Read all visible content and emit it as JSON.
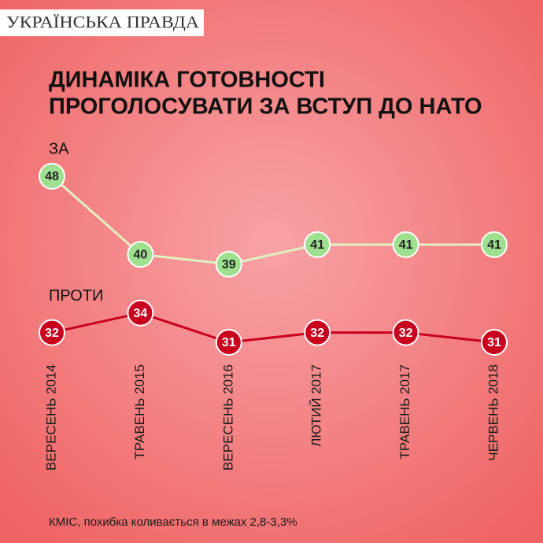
{
  "logo": "УКРАЇНСЬКА ПРАВДА",
  "chart_data": {
    "type": "line",
    "title": [
      "ДИНАМІКА ГОТОВНОСТІ",
      "ПРОГОЛОСУВАТИ ЗА ВСТУП ДО НАТО"
    ],
    "categories": [
      "ВЕРЕСЕНЬ 2014",
      "ТРАВЕНЬ 2015",
      "ВЕРЕСЕНЬ 2016",
      "ЛЮТИЙ 2017",
      "ТРАВЕНЬ 2017",
      "ЧЕРВЕНЬ 2018"
    ],
    "series": [
      {
        "name": "ЗА",
        "color": "#9ee08f",
        "line_color": "#e2efbf",
        "text_color": "#222222",
        "values": [
          48,
          40,
          39,
          41,
          41,
          41
        ]
      },
      {
        "name": "ПРОТИ",
        "color": "#c8001e",
        "line_color": "#c8001e",
        "text_color": "#ffffff",
        "values": [
          32,
          34,
          31,
          32,
          32,
          31
        ]
      }
    ],
    "source": "КМІС, похибка коливається в межах 2,8-3,3%"
  }
}
